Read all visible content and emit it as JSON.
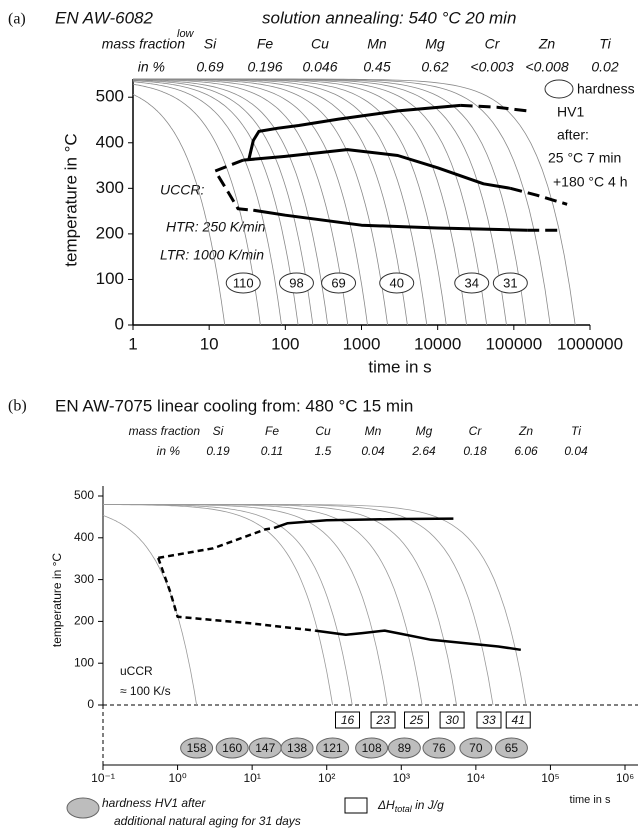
{
  "chart_data": [
    {
      "type": "line",
      "panel_label": "(a)",
      "title": "EN AW-6082",
      "subtitle": "solution annealing: 540 °C 20 min",
      "composition": {
        "label": "mass fraction",
        "label_sub": "low",
        "unit": "in %",
        "elements": [
          "Si",
          "Fe",
          "Cu",
          "Mn",
          "Mg",
          "Cr",
          "Zn",
          "Ti"
        ],
        "values": [
          0.69,
          0.196,
          0.046,
          0.45,
          0.62,
          "<0.003",
          "<0.008",
          0.02
        ]
      },
      "x_label": "time in s",
      "y_label": "temperature in °C",
      "x_scale": "log",
      "xlim": [
        1,
        1000000
      ],
      "xticks": [
        1,
        10,
        100,
        1000,
        10000,
        100000,
        1000000
      ],
      "ylim": [
        0,
        540
      ],
      "yticks": [
        0,
        100,
        200,
        300,
        400,
        500
      ],
      "cooling": {
        "start": 540,
        "color": "#8a8a8a",
        "end_times": [
          16,
          47,
          89,
          147,
          230,
          360,
          660,
          1200,
          2200,
          4000,
          7200,
          13000,
          24000,
          44000,
          80000,
          145000,
          300000,
          640000
        ]
      },
      "series": [
        {
          "color": "#000000",
          "dashed": false,
          "x": [
            33,
            38,
            45,
            80,
            150,
            500,
            3000,
            20000
          ],
          "values": [
            362,
            405,
            425,
            432,
            438,
            452,
            470,
            482
          ]
        },
        {
          "color": "#000000",
          "dashed": true,
          "x": [
            20000,
            60000,
            150000
          ],
          "values": [
            482,
            478,
            470
          ]
        },
        {
          "color": "#000000",
          "dashed": false,
          "x": [
            28,
            100,
            650,
            3000,
            10000,
            40000,
            90000
          ],
          "values": [
            362,
            370,
            385,
            372,
            345,
            310,
            300
          ]
        },
        {
          "color": "#000000",
          "dashed": true,
          "x": [
            90000,
            200000,
            500000
          ],
          "values": [
            300,
            285,
            265
          ]
        },
        {
          "color": "#000000",
          "dashed": true,
          "x": [
            28,
            12,
            18,
            24,
            38
          ],
          "values": [
            362,
            338,
            290,
            255,
            252
          ]
        },
        {
          "color": "#000000",
          "dashed": false,
          "x": [
            38,
            100,
            1000,
            10000,
            150000
          ],
          "values": [
            252,
            241,
            219,
            213,
            208
          ]
        },
        {
          "color": "#000000",
          "dashed": true,
          "x": [
            150000,
            400000
          ],
          "values": [
            208,
            208
          ]
        }
      ],
      "hardness": {
        "x": [
          28,
          140,
          500,
          2900,
          28000,
          90000
        ],
        "values": [
          110,
          98,
          69,
          40,
          34,
          31
        ]
      },
      "annotations": {
        "uccr": "UCCR:",
        "htr": "HTR:  250 K/min",
        "ltr": "LTR: 1000 K/min"
      },
      "legend": [
        "hardness",
        "HV1",
        "after:",
        "25 °C 7 min",
        "+180 °C 4 h"
      ]
    },
    {
      "type": "line",
      "panel_label": "(b)",
      "title": "EN AW-7075 linear cooling from: 480 °C 15 min",
      "composition": {
        "label": "mass fraction",
        "unit": "in %",
        "elements": [
          "Si",
          "Fe",
          "Cu",
          "Mn",
          "Mg",
          "Cr",
          "Zn",
          "Ti"
        ],
        "values": [
          0.19,
          0.11,
          1.5,
          0.04,
          2.64,
          0.18,
          6.06,
          0.04
        ]
      },
      "x_label": "time in s",
      "y_label": "temperature in °C",
      "x_scale": "log",
      "xlim": [
        0.1,
        1000000
      ],
      "xticks": [
        {
          "value": 0.1,
          "label": "10⁻¹"
        },
        {
          "value": 1,
          "label": "10⁰"
        },
        {
          "value": 10,
          "label": "10¹"
        },
        {
          "value": 100,
          "label": "10²"
        },
        {
          "value": 1000,
          "label": "10³"
        },
        {
          "value": 10000,
          "label": "10⁴"
        },
        {
          "value": 100000,
          "label": "10⁵"
        },
        {
          "value": 1000000,
          "label": "10⁶"
        }
      ],
      "ylim": [
        0,
        500
      ],
      "yticks": [
        0,
        100,
        200,
        300,
        400,
        500
      ],
      "cooling": {
        "start": 480,
        "color": "#9a9a9a",
        "end_times": [
          1.8,
          120,
          220,
          650,
          1900,
          5500,
          17000,
          47000
        ]
      },
      "series": [
        {
          "color": "#000000",
          "dashed": true,
          "x": [
            0.55,
            3,
            15,
            20
          ],
          "values": [
            352,
            375,
            420,
            424
          ]
        },
        {
          "color": "#000000",
          "dashed": false,
          "x": [
            20,
            30,
            100,
            1000,
            5000
          ],
          "values": [
            424,
            435,
            442,
            445,
            446
          ]
        },
        {
          "color": "#000000",
          "dashed": true,
          "x": [
            0.55,
            0.8,
            1,
            10,
            70
          ],
          "values": [
            352,
            270,
            211,
            195,
            178
          ]
        },
        {
          "color": "#000000",
          "dashed": false,
          "x": [
            70,
            180,
            300,
            600,
            1000,
            2500,
            20000,
            40000
          ],
          "values": [
            178,
            168,
            172,
            178,
            170,
            156,
            140,
            132
          ]
        }
      ],
      "hardness": {
        "x": [
          1.8,
          5.4,
          15,
          40,
          120,
          400,
          1100,
          3200,
          10000,
          30000
        ],
        "values": [
          158,
          160,
          147,
          138,
          121,
          108,
          89,
          76,
          70,
          65
        ]
      },
      "delta_h": {
        "x": [
          190,
          570,
          1600,
          4800,
          15000,
          37000
        ],
        "values": [
          16,
          23,
          25,
          30,
          33,
          41
        ]
      },
      "annotations": {
        "uccr": "uCCR",
        "rate": "≈ 100 K/s"
      },
      "legend": {
        "hardness": "hardness HV1 after",
        "hardness_2": "additional natural aging for 31 days",
        "delta_h": "ΔH",
        "delta_h_sub": "total",
        "delta_h_unit": " in J/g"
      }
    }
  ]
}
